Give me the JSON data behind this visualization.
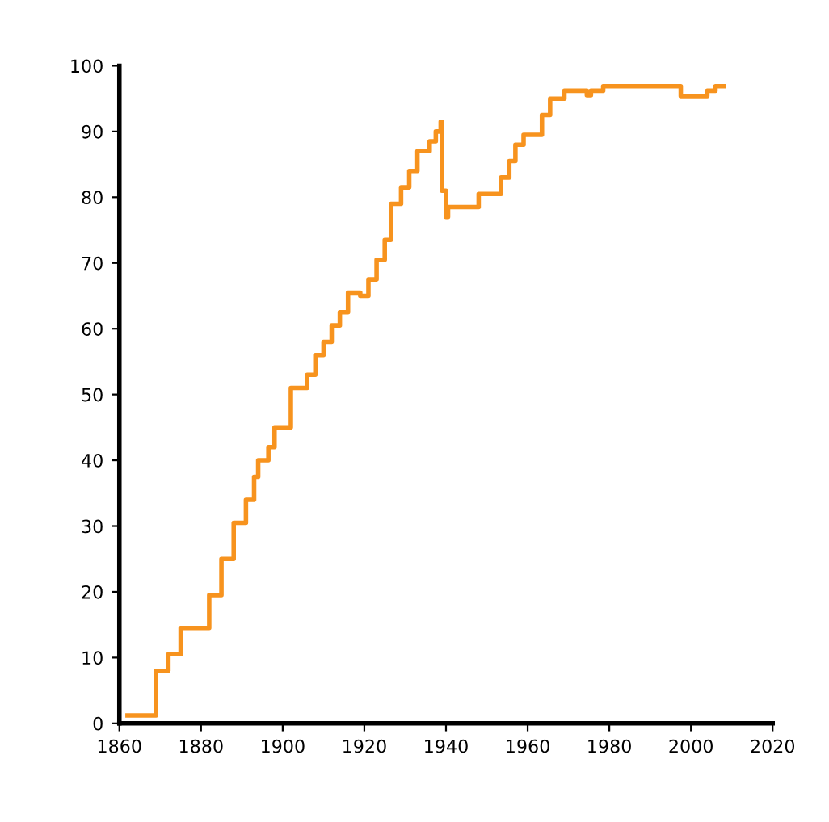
{
  "chart_data": {
    "type": "step",
    "xlim": [
      1860,
      2020
    ],
    "xticks": [
      1860,
      1880,
      1900,
      1920,
      1940,
      1960,
      1980,
      2000,
      2020
    ],
    "ylim": [
      0,
      100
    ],
    "yticks": [
      0,
      10,
      20,
      30,
      40,
      50,
      60,
      70,
      80,
      90,
      100
    ],
    "grid": false,
    "legend": false,
    "series": [
      {
        "color": "#f7931e",
        "x": [
          1862,
          1869,
          1872,
          1875,
          1882,
          1885,
          1888,
          1891,
          1893,
          1894,
          1896.5,
          1898,
          1902,
          1906,
          1908,
          1910,
          1912,
          1914,
          1916,
          1919,
          1921,
          1923,
          1925,
          1926.5,
          1929,
          1931,
          1933,
          1936,
          1937.5,
          1938.7,
          1939,
          1940,
          1940.5,
          1948,
          1953.5,
          1955.5,
          1957,
          1959,
          1963.5,
          1965.5,
          1969,
          1974.5,
          1975.5,
          1978.5,
          1997.5,
          2004,
          2006,
          2008
        ],
        "values": [
          1.2,
          8,
          10.5,
          14.5,
          19.5,
          25,
          30.5,
          34,
          37.5,
          40,
          42,
          45,
          51,
          53,
          56,
          58,
          60.5,
          62.5,
          65.5,
          65,
          67.5,
          70.5,
          73.5,
          79,
          81.5,
          84,
          87,
          88.5,
          90,
          91.5,
          81,
          77,
          78.5,
          80.5,
          83,
          85.5,
          88,
          89.5,
          92.5,
          95,
          96.2,
          95.5,
          96.2,
          96.9,
          95.4,
          96.2,
          96.9,
          96.9
        ]
      }
    ]
  }
}
